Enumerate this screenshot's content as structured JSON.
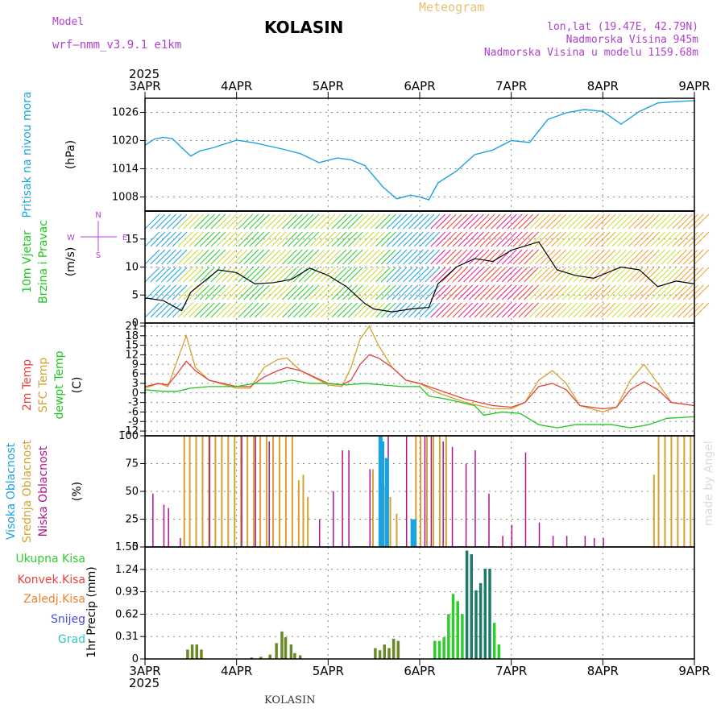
{
  "header": {
    "model_label": "Model",
    "model_name": "wrf—nmm_v3.9.1  e1km",
    "station": "KOLASIN",
    "meteogram": "Meteogram",
    "lonlat": "lon,lat (19.47E, 42.79N)",
    "altitude": "Nadmorska Visina 945m",
    "model_altitude": "Nadmorska Visina u modelu 1159.68m",
    "year_top": "2025",
    "year_bottom": "2025",
    "footer_station": "KOLASIN",
    "made_by": "made by Angel"
  },
  "colors": {
    "pressure": "#1aa3e0",
    "t2m": "#e8413c",
    "sfc": "#d4a22e",
    "dewpt": "#1ec81e",
    "high_cloud": "#1aa3e0",
    "mid_cloud": "#d4a22e",
    "low_cloud": "#b0148c",
    "total_precip": "#2ecc2e",
    "conv_precip": "#e8413c",
    "frozen_precip": "#f08030",
    "snow": "#4a4ae0",
    "hail": "#30c8c8",
    "wind_dir_label": "#b040d0"
  },
  "x_axis": {
    "dates": [
      "3APR",
      "4APR",
      "5APR",
      "6APR",
      "7APR",
      "8APR",
      "9APR"
    ]
  },
  "panels": {
    "pressure": {
      "label": "Pritisak na nivou mora",
      "unit": "(hPa)",
      "ticks": [
        "1008",
        "1014",
        "1020",
        "1026"
      ]
    },
    "wind": {
      "label1": "10m Vjetar",
      "label2": "Brzina i Pravac",
      "unit": "(m/s)",
      "ticks": [
        "0",
        "5",
        "10",
        "15"
      ],
      "compass": {
        "n": "N",
        "s": "S",
        "w": "W",
        "e": "E"
      }
    },
    "temp": {
      "label1": "2m Temp",
      "label2": "SFC Temp",
      "label3": "dewpt Temp",
      "unit": "(C)",
      "ticks": [
        "-12",
        "-9",
        "-6",
        "-3",
        "0",
        "3",
        "6",
        "9",
        "12",
        "15",
        "18",
        "21"
      ]
    },
    "cloud": {
      "label1": "Visoka Oblacnost",
      "label2": "Srednja Oblacnost",
      "label3": "Niska Oblacnost",
      "unit": "(%)",
      "ticks": [
        "0",
        "25",
        "50",
        "75",
        "100"
      ]
    },
    "precip": {
      "unit": "1hr Precip (mm)",
      "ticks": [
        "0",
        "0.31",
        "0.62",
        "0.93",
        "1.24",
        "1.55"
      ],
      "legend": [
        "Ukupna Kisa",
        "Konvek.Kisa",
        "Zaledj.Kisa",
        "Snijeg",
        "Grad"
      ]
    }
  },
  "chart_data": [
    {
      "type": "line",
      "title": "Pritisak na nivou mora",
      "ylabel": "(hPa)",
      "ylim": [
        1005,
        1029
      ],
      "series": [
        {
          "name": "Pritisak na nivou mora",
          "x": [
            0,
            0.1,
            0.2,
            0.3,
            0.4,
            0.5,
            0.6,
            0.75,
            1.0,
            1.2,
            1.5,
            1.7,
            1.9,
            2.1,
            2.25,
            2.4,
            2.6,
            2.75,
            2.9,
            3.0,
            3.1,
            3.2,
            3.4,
            3.6,
            3.8,
            4.0,
            4.2,
            4.4,
            4.6,
            4.8,
            5.0,
            5.2,
            5.4,
            5.6,
            5.8,
            6.0
          ],
          "y": [
            1019,
            1020.3,
            1020.7,
            1020.4,
            1018.5,
            1016.7,
            1017.8,
            1018.5,
            1020.1,
            1019.5,
            1018.2,
            1017.2,
            1015.3,
            1016.3,
            1015.9,
            1014.7,
            1010.1,
            1007.6,
            1008.4,
            1008.0,
            1007.4,
            1011.0,
            1013.5,
            1017.0,
            1018.0,
            1020.0,
            1019.6,
            1024.5,
            1025.9,
            1026.6,
            1026.2,
            1023.5,
            1026.2,
            1028.0,
            1028.3,
            1028.5
          ]
        }
      ]
    },
    {
      "type": "line",
      "title": "10m Vjetar Brzina i Pravac",
      "ylabel": "(m/s)",
      "ylim": [
        0,
        20
      ],
      "series": [
        {
          "name": "10m Vjetar",
          "x": [
            0,
            0.2,
            0.4,
            0.5,
            0.8,
            1.0,
            1.2,
            1.4,
            1.6,
            1.8,
            2.0,
            2.2,
            2.4,
            2.5,
            2.7,
            2.9,
            3.1,
            3.2,
            3.4,
            3.6,
            3.8,
            4.0,
            4.3,
            4.5,
            4.7,
            4.9,
            5.2,
            5.4,
            5.6,
            5.8,
            6.0
          ],
          "y": [
            4.5,
            4.0,
            2.2,
            5.5,
            9.5,
            9.0,
            7.0,
            7.2,
            7.8,
            9.8,
            8.5,
            6.5,
            3.5,
            2.5,
            2.0,
            2.5,
            2.8,
            7.0,
            10.0,
            11.5,
            11.0,
            13.0,
            14.5,
            9.5,
            8.5,
            8.0,
            10.0,
            9.5,
            6.5,
            7.5,
            7.0
          ]
        }
      ]
    },
    {
      "type": "line",
      "title": "2m Temp / SFC Temp / dewpt Temp",
      "ylabel": "(C)",
      "ylim": [
        -13.5,
        22
      ],
      "series": [
        {
          "name": "2m Temp",
          "x": [
            0,
            0.15,
            0.25,
            0.35,
            0.45,
            0.55,
            0.7,
            1.0,
            1.15,
            1.3,
            1.45,
            1.55,
            1.7,
            2.0,
            2.15,
            2.25,
            2.35,
            2.45,
            2.55,
            2.7,
            2.85,
            3.0,
            3.2,
            3.5,
            3.8,
            4.0,
            4.15,
            4.3,
            4.45,
            4.6,
            4.75,
            5.0,
            5.15,
            5.3,
            5.45,
            5.6,
            5.75,
            6.0
          ],
          "y": [
            2,
            3,
            2.5,
            6,
            10,
            7,
            4,
            2,
            2,
            5,
            7,
            8,
            7,
            3,
            2.5,
            4,
            9,
            12,
            11,
            8,
            4,
            3,
            1,
            -2,
            -4,
            -4.5,
            -3,
            2,
            3,
            1,
            -4,
            -5,
            -4.5,
            1,
            3.5,
            1,
            -3,
            -4
          ]
        },
        {
          "name": "SFC Temp",
          "x": [
            0,
            0.15,
            0.25,
            0.35,
            0.45,
            0.55,
            0.7,
            1.0,
            1.15,
            1.3,
            1.45,
            1.55,
            1.7,
            2.0,
            2.15,
            2.25,
            2.35,
            2.45,
            2.55,
            2.7,
            2.85,
            3.0,
            3.2,
            3.5,
            3.8,
            4.0,
            4.15,
            4.3,
            4.45,
            4.6,
            4.75,
            5.0,
            5.15,
            5.3,
            5.45,
            5.6,
            5.75,
            6.0
          ],
          "y": [
            1.5,
            3,
            2,
            10,
            18,
            8,
            4,
            1.5,
            1.5,
            8,
            10.5,
            11,
            7,
            2.5,
            2,
            8,
            17,
            21,
            15,
            8,
            4,
            3,
            0,
            -3,
            -5,
            -5,
            -3,
            4,
            7,
            3,
            -4,
            -6,
            -4.5,
            4,
            9,
            3,
            -3,
            -4
          ]
        },
        {
          "name": "dewpt Temp",
          "x": [
            0,
            0.2,
            0.35,
            0.5,
            0.7,
            1.0,
            1.2,
            1.4,
            1.6,
            1.8,
            2.0,
            2.2,
            2.4,
            2.6,
            2.8,
            3.0,
            3.1,
            3.3,
            3.6,
            3.7,
            3.9,
            4.1,
            4.3,
            4.5,
            4.7,
            4.9,
            5.1,
            5.3,
            5.5,
            5.7,
            6.0
          ],
          "y": [
            1,
            0.5,
            0.5,
            1.5,
            2,
            2,
            3,
            3,
            4,
            3,
            3,
            2.5,
            3,
            2.5,
            2,
            2,
            -1,
            -2,
            -4,
            -7,
            -6,
            -6.5,
            -10,
            -11,
            -10,
            -10,
            -10,
            -11,
            -10,
            -8,
            -7.5
          ]
        }
      ]
    },
    {
      "type": "bar",
      "title": "Visoka / Srednja / Niska Oblacnost",
      "ylabel": "(%)",
      "ylim": [
        0,
        100
      ],
      "series": [
        {
          "name": "Visoka Oblacnost",
          "x": [
            2.55,
            2.57,
            2.62,
            2.9,
            2.92
          ],
          "values": [
            100,
            95,
            80,
            25,
            25
          ]
        },
        {
          "name": "Srednja Oblacnost",
          "x": [
            0.42,
            0.48,
            0.55,
            0.62,
            0.69,
            0.76,
            0.83,
            0.9,
            0.97,
            1.04,
            1.11,
            1.18,
            1.25,
            1.32,
            1.39,
            1.46,
            1.53,
            1.6,
            1.67,
            1.72,
            1.77,
            2.48,
            2.6,
            2.67,
            2.74,
            2.95,
            3.0,
            3.07,
            3.14,
            3.21,
            3.28,
            5.55,
            5.6,
            5.67,
            5.74,
            5.81,
            5.88,
            5.95
          ],
          "values": [
            100,
            100,
            100,
            100,
            100,
            100,
            100,
            100,
            100,
            100,
            100,
            100,
            100,
            100,
            100,
            100,
            100,
            100,
            60,
            65,
            45,
            70,
            55,
            45,
            30,
            100,
            100,
            100,
            100,
            100,
            100,
            65,
            100,
            100,
            100,
            100,
            100,
            100
          ]
        },
        {
          "name": "Niska Oblacnost",
          "x": [
            0.08,
            0.2,
            0.25,
            0.38,
            0.7,
            1.05,
            1.2,
            1.35,
            1.9,
            2.05,
            2.15,
            2.22,
            2.45,
            2.65,
            2.85,
            3.05,
            3.12,
            3.25,
            3.35,
            3.5,
            3.6,
            3.75,
            3.9,
            4.0,
            4.15,
            4.3,
            4.45,
            4.6,
            4.8,
            4.9,
            5.0
          ],
          "values": [
            48,
            38,
            35,
            8,
            100,
            100,
            100,
            95,
            25,
            50,
            87,
            87,
            70,
            100,
            100,
            100,
            100,
            95,
            90,
            75,
            87,
            48,
            10,
            20,
            85,
            22,
            10,
            10,
            10,
            8,
            8
          ]
        }
      ]
    },
    {
      "type": "bar",
      "title": "1hr Precip",
      "ylabel": "1hr Precip (mm)",
      "ylim": [
        0,
        1.55
      ],
      "series": [
        {
          "name": "Ukupna Kisa",
          "x": [
            0.45,
            0.5,
            0.55,
            0.6,
            1.15,
            1.25,
            1.35,
            1.42,
            1.48,
            1.52,
            1.58,
            1.62,
            1.68,
            2.5,
            2.55,
            2.6,
            2.65,
            2.7,
            2.75,
            3.15,
            3.2,
            3.25,
            3.3,
            3.35,
            3.4,
            3.45,
            3.5,
            3.55,
            3.6,
            3.65,
            3.7,
            3.75,
            3.8,
            3.85
          ],
          "values": [
            0.13,
            0.2,
            0.2,
            0.13,
            0.02,
            0.03,
            0.06,
            0.22,
            0.38,
            0.3,
            0.2,
            0.08,
            0.05,
            0.15,
            0.12,
            0.2,
            0.15,
            0.28,
            0.25,
            0.25,
            0.25,
            0.3,
            0.62,
            0.9,
            0.8,
            0.62,
            1.5,
            1.45,
            0.95,
            1.05,
            1.25,
            1.25,
            0.5,
            0.2
          ]
        }
      ]
    }
  ]
}
